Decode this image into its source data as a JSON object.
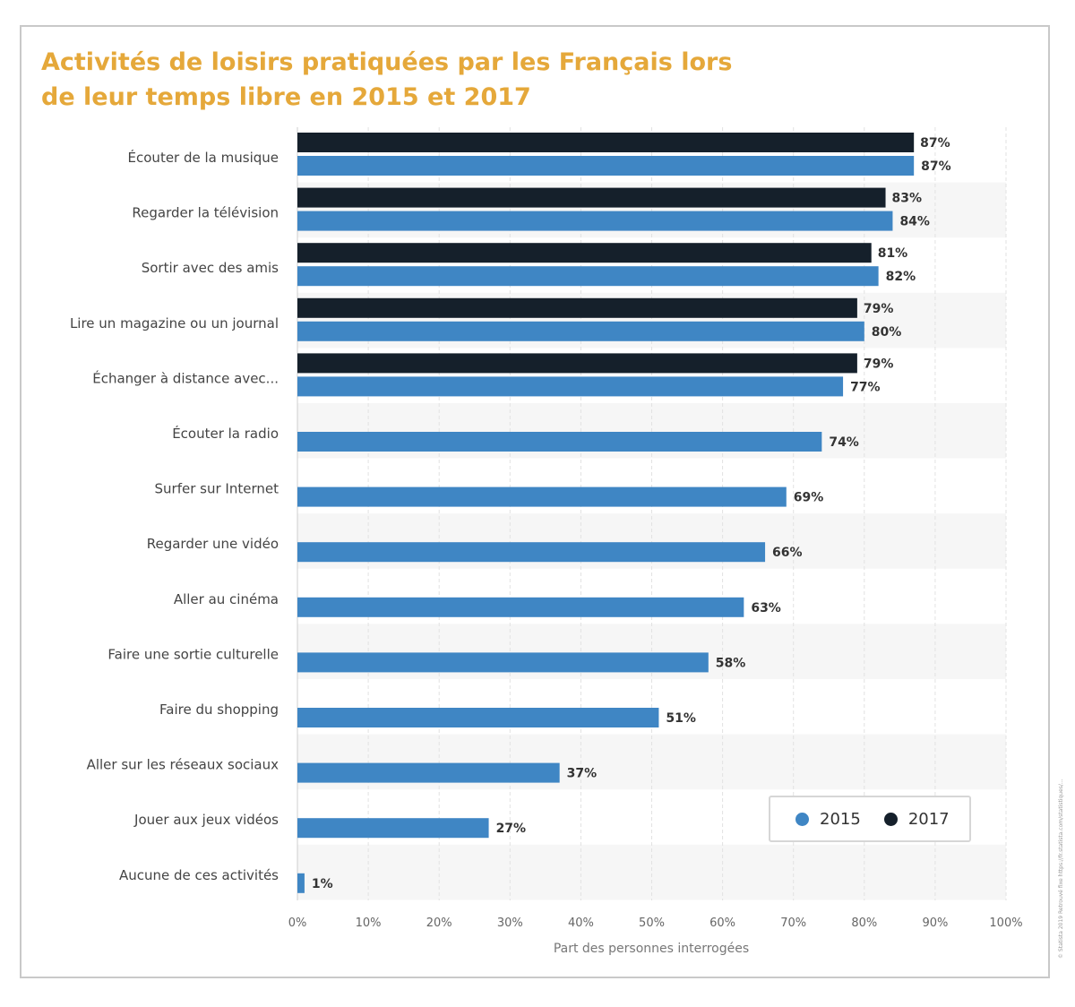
{
  "chart_data": {
    "type": "bar",
    "orientation": "horizontal",
    "title_line1": "Activités de loisirs pratiquées par les Français lors",
    "title_line2": "de leur temps libre en 2015 et 2017",
    "xlabel": "Part des personnes interrogées",
    "ylabel": "",
    "xlim": [
      0,
      100
    ],
    "grid": true,
    "legend_position": "bottom-right",
    "x_ticks": [
      "0%",
      "10%",
      "20%",
      "30%",
      "40%",
      "50%",
      "60%",
      "70%",
      "80%",
      "90%",
      "100%"
    ],
    "categories": [
      "Écouter de la musique",
      "Regarder la télévision",
      "Sortir avec des amis",
      "Lire un magazine ou un journal",
      "Échanger à distance avec...",
      "Écouter la radio",
      "Surfer sur Internet",
      "Regarder une vidéo",
      "Aller au cinéma",
      "Faire une sortie culturelle",
      "Faire du shopping",
      "Aller sur les réseaux sociaux",
      "Jouer aux jeux vidéos",
      "Aucune de ces activités"
    ],
    "series": [
      {
        "name": "2015",
        "color": "#3f86c4",
        "values": [
          87,
          84,
          82,
          80,
          77,
          74,
          69,
          66,
          63,
          58,
          51,
          37,
          27,
          1
        ]
      },
      {
        "name": "2017",
        "color": "#15202b",
        "values": [
          87,
          83,
          81,
          79,
          79,
          null,
          null,
          null,
          null,
          null,
          null,
          null,
          null,
          null
        ]
      }
    ]
  },
  "source_note": "© Statista 2019 Retrouvé fixe https://fr.statista.com/statistiques/..."
}
